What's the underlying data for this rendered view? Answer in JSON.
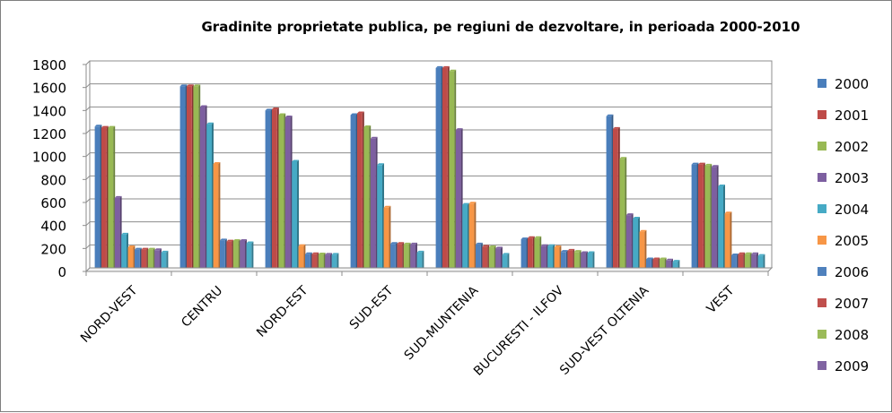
{
  "chart_data": {
    "type": "bar",
    "title": "Gradinite proprietate publica, pe regiuni de dezvoltare, in perioada 2000-2010",
    "xlabel": "",
    "ylabel": "",
    "ylim": [
      0,
      1800
    ],
    "yticks": [
      "0",
      "200",
      "400",
      "600",
      "800",
      "1000",
      "1200",
      "1400",
      "1600",
      "1800"
    ],
    "grid": true,
    "legend_position": "right",
    "categories": [
      "NORD-VEST",
      "CENTRU",
      "NORD-EST",
      "SUD-EST",
      "SUD-MUNTENIA",
      "BUCURESTI - ILFOV",
      "SUD-VEST OLTENIA",
      "VEST"
    ],
    "series": [
      {
        "name": "2000",
        "color": "#4a7ebb",
        "values": [
          1260,
          1610,
          1400,
          1360,
          1770,
          280,
          1350,
          930
        ]
      },
      {
        "name": "2001",
        "color": "#be4b48",
        "values": [
          1250,
          1610,
          1410,
          1375,
          1770,
          290,
          1240,
          930
        ]
      },
      {
        "name": "2002",
        "color": "#98b954",
        "values": [
          1250,
          1610,
          1360,
          1255,
          1740,
          290,
          980,
          920
        ]
      },
      {
        "name": "2003",
        "color": "#7d5fa0",
        "values": [
          640,
          1430,
          1340,
          1155,
          1230,
          220,
          490,
          910
        ]
      },
      {
        "name": "2004",
        "color": "#46aac5",
        "values": [
          320,
          1280,
          955,
          925,
          580,
          220,
          460,
          740
        ]
      },
      {
        "name": "2005",
        "color": "#f79646",
        "values": [
          210,
          935,
          220,
          555,
          590,
          210,
          345,
          505
        ]
      },
      {
        "name": "2006",
        "color": "#4f81bd",
        "values": [
          190,
          270,
          150,
          240,
          235,
          170,
          105,
          140
        ]
      },
      {
        "name": "2007",
        "color": "#c0504d",
        "values": [
          190,
          260,
          150,
          240,
          215,
          180,
          105,
          150
        ]
      },
      {
        "name": "2008",
        "color": "#9bbb59",
        "values": [
          190,
          265,
          148,
          235,
          210,
          170,
          105,
          150
        ]
      },
      {
        "name": "2009",
        "color": "#8064a2",
        "values": [
          185,
          265,
          145,
          235,
          200,
          160,
          95,
          150
        ]
      },
      {
        "name": "",
        "color": "#4bacc6",
        "values": [
          165,
          245,
          145,
          165,
          145,
          160,
          85,
          135
        ]
      }
    ]
  }
}
